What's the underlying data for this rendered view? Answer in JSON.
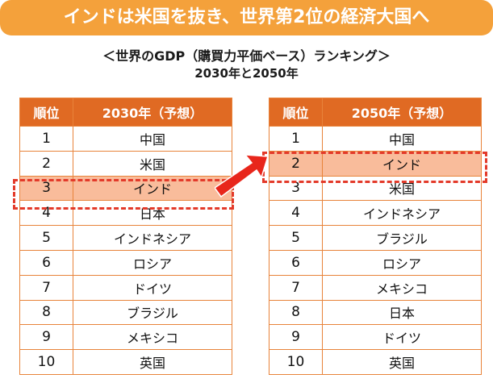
{
  "banner": {
    "title": "インドは米国を抜き、世界第2位の経済大国へ"
  },
  "subtitle": {
    "line1": "＜世界のGDP（購買力平価ベース）ランキング＞",
    "line2": "2030年と2050年"
  },
  "colors": {
    "banner": "#f4a13b",
    "header": "#e06a23",
    "border": "#e8833a",
    "highlight": "#f9bc9b",
    "dash": "#e33a2a",
    "arrow": "#e8261b"
  },
  "table_2030": {
    "header_rank": "順位",
    "header_year": "2030年（予想）",
    "rows": [
      {
        "rank": "1",
        "country": "中国"
      },
      {
        "rank": "2",
        "country": "米国"
      },
      {
        "rank": "3",
        "country": "インド"
      },
      {
        "rank": "4",
        "country": "日本"
      },
      {
        "rank": "5",
        "country": "インドネシア"
      },
      {
        "rank": "6",
        "country": "ロシア"
      },
      {
        "rank": "7",
        "country": "ドイツ"
      },
      {
        "rank": "8",
        "country": "ブラジル"
      },
      {
        "rank": "9",
        "country": "メキシコ"
      },
      {
        "rank": "10",
        "country": "英国"
      }
    ]
  },
  "table_2050": {
    "header_rank": "順位",
    "header_year": "2050年（予想）",
    "rows": [
      {
        "rank": "1",
        "country": "中国"
      },
      {
        "rank": "2",
        "country": "インド"
      },
      {
        "rank": "3",
        "country": "米国"
      },
      {
        "rank": "4",
        "country": "インドネシア"
      },
      {
        "rank": "5",
        "country": "ブラジル"
      },
      {
        "rank": "6",
        "country": "ロシア"
      },
      {
        "rank": "7",
        "country": "メキシコ"
      },
      {
        "rank": "8",
        "country": "日本"
      },
      {
        "rank": "9",
        "country": "ドイツ"
      },
      {
        "rank": "10",
        "country": "英国"
      }
    ]
  },
  "icons": {
    "arrow": "arrow-up-right-icon"
  }
}
